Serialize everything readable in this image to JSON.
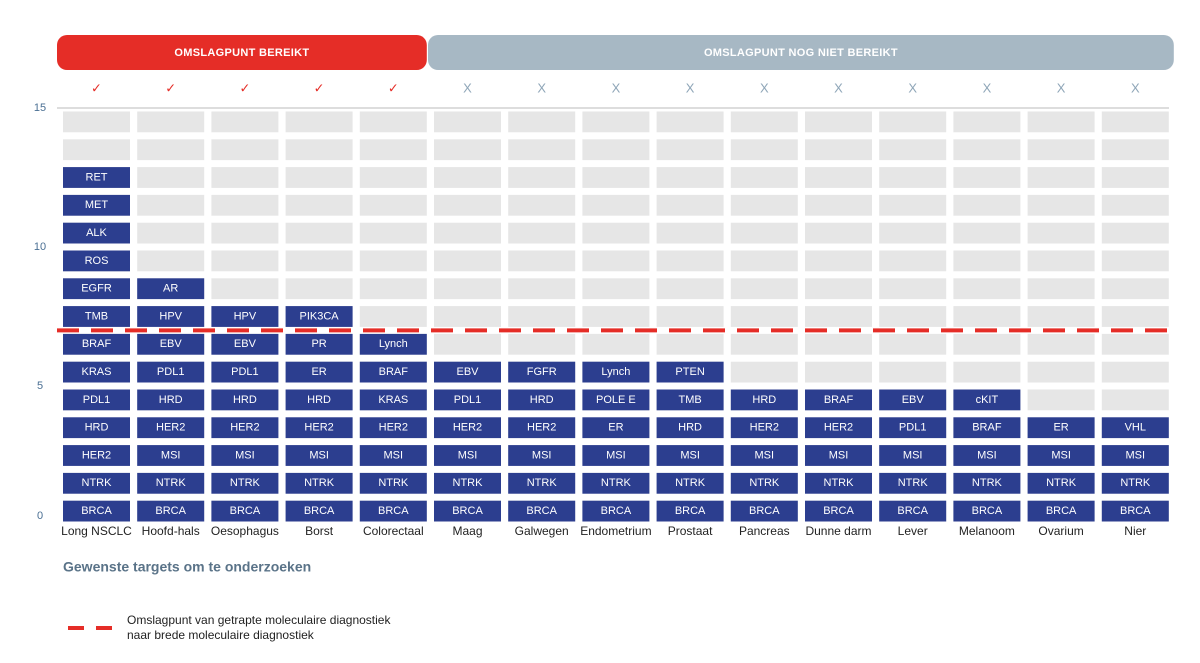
{
  "chart_data": {
    "type": "tiles",
    "ylim": [
      0,
      15
    ],
    "yticks": [
      0,
      5,
      10,
      15
    ],
    "tile_color": "#2c3e8f",
    "empty_color": "#e6e6e6",
    "groups": [
      {
        "title": "OMSLAGPUNT BEREIKT",
        "color": "#e52d27",
        "mark_color": "#e52d27",
        "columns": [
          {
            "name": "Long NSCLC",
            "mark": "✓",
            "targets": [
              "BRCA",
              "NTRK",
              "HER2",
              "HRD",
              "PDL1",
              "KRAS",
              "BRAF",
              "TMB",
              "EGFR",
              "ROS",
              "ALK",
              "MET",
              "RET"
            ]
          },
          {
            "name": "Hoofd-hals",
            "mark": "✓",
            "targets": [
              "BRCA",
              "NTRK",
              "MSI",
              "HER2",
              "HRD",
              "PDL1",
              "EBV",
              "HPV",
              "AR"
            ]
          },
          {
            "name": "Oesophagus",
            "mark": "✓",
            "targets": [
              "BRCA",
              "NTRK",
              "MSI",
              "HER2",
              "HRD",
              "PDL1",
              "EBV",
              "HPV"
            ]
          },
          {
            "name": "Borst",
            "mark": "✓",
            "targets": [
              "BRCA",
              "NTRK",
              "MSI",
              "HER2",
              "HRD",
              "ER",
              "PR",
              "PIK3CA"
            ]
          },
          {
            "name": "Colorectaal",
            "mark": "✓",
            "targets": [
              "BRCA",
              "NTRK",
              "MSI",
              "HER2",
              "KRAS",
              "BRAF",
              "Lynch"
            ]
          }
        ]
      },
      {
        "title": "OMSLAGPUNT NOG NIET BEREIKT",
        "color": "#a7b8c4",
        "mark_color": "#8fa6b8",
        "columns": [
          {
            "name": "Maag",
            "mark": "X",
            "targets": [
              "BRCA",
              "NTRK",
              "MSI",
              "HER2",
              "PDL1",
              "EBV"
            ]
          },
          {
            "name": "Galwegen",
            "mark": "X",
            "targets": [
              "BRCA",
              "NTRK",
              "MSI",
              "HER2",
              "HRD",
              "FGFR"
            ]
          },
          {
            "name": "Endometrium",
            "mark": "X",
            "targets": [
              "BRCA",
              "NTRK",
              "MSI",
              "ER",
              "POLE E",
              "Lynch"
            ]
          },
          {
            "name": "Prostaat",
            "mark": "X",
            "targets": [
              "BRCA",
              "NTRK",
              "MSI",
              "HRD",
              "TMB",
              "PTEN"
            ]
          },
          {
            "name": "Pancreas",
            "mark": "X",
            "targets": [
              "BRCA",
              "NTRK",
              "MSI",
              "HER2",
              "HRD"
            ]
          },
          {
            "name": "Dunne darm",
            "mark": "X",
            "targets": [
              "BRCA",
              "NTRK",
              "MSI",
              "HER2",
              "BRAF"
            ]
          },
          {
            "name": "Lever",
            "mark": "X",
            "targets": [
              "BRCA",
              "NTRK",
              "MSI",
              "PDL1",
              "EBV"
            ]
          },
          {
            "name": "Melanoom",
            "mark": "X",
            "targets": [
              "BRCA",
              "NTRK",
              "MSI",
              "BRAF",
              "cKIT"
            ]
          },
          {
            "name": "Ovarium",
            "mark": "X",
            "targets": [
              "BRCA",
              "NTRK",
              "MSI",
              "ER"
            ]
          },
          {
            "name": "Nier",
            "mark": "X",
            "targets": [
              "BRCA",
              "NTRK",
              "MSI",
              "VHL"
            ]
          }
        ]
      }
    ],
    "threshold": {
      "value": 7,
      "color": "#e52d27",
      "label": [
        "Omslagpunt van getrapte moleculaire diagnostiek",
        "naar brede moleculaire diagnostiek"
      ]
    },
    "xlabel": "Gewenste targets om te onderzoeken"
  }
}
